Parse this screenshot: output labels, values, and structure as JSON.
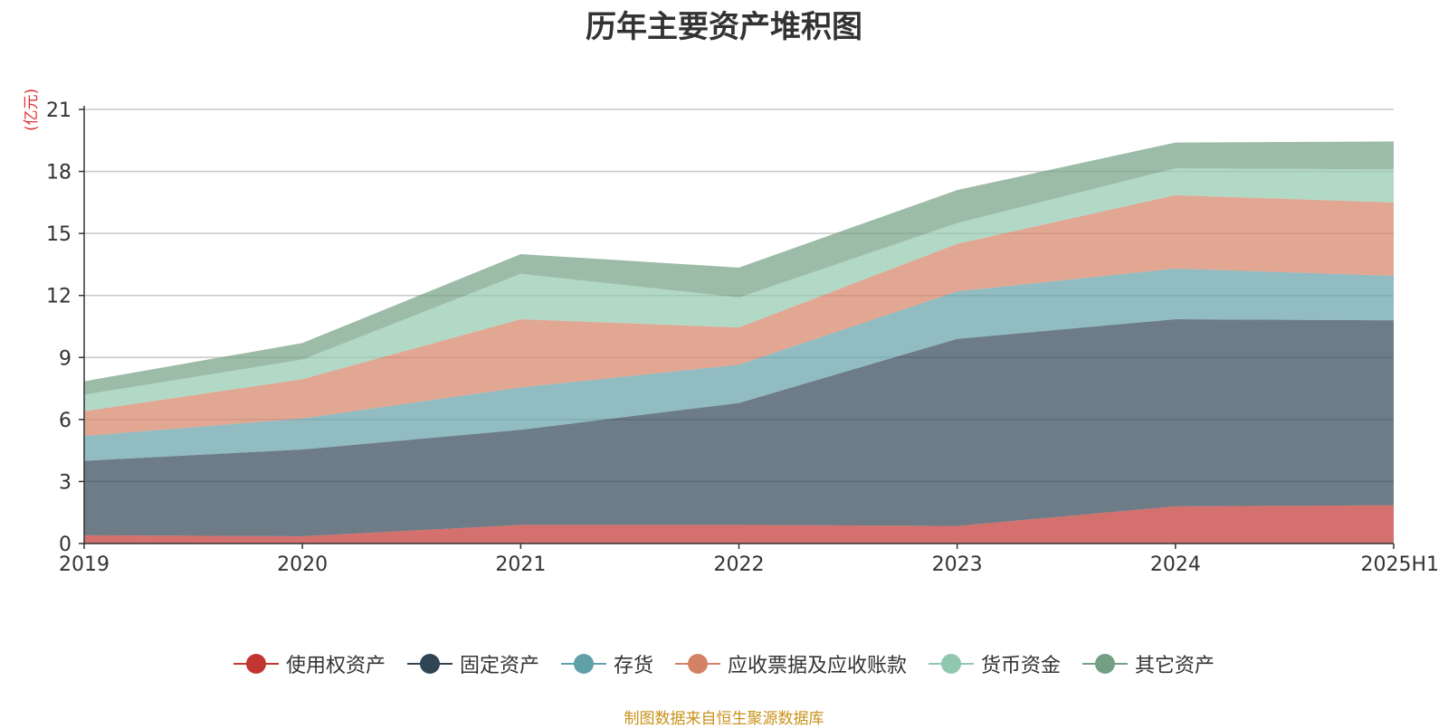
{
  "chart_data": {
    "type": "area",
    "stacked": true,
    "title": "历年主要资产堆积图",
    "unit_label": "(亿元)",
    "x": [
      "2019",
      "2020",
      "2021",
      "2022",
      "2023",
      "2024",
      "2025H1"
    ],
    "ylim": [
      0,
      21
    ],
    "yticks": [
      0,
      3,
      6,
      9,
      12,
      15,
      18,
      21
    ],
    "grid": true,
    "legend_position": "bottom-center",
    "series": [
      {
        "name": "使用权资产",
        "color": "#c23531",
        "values": [
          0.4,
          0.35,
          0.9,
          0.9,
          0.85,
          1.8,
          1.85
        ]
      },
      {
        "name": "固定资产",
        "color": "#2f4554",
        "values": [
          3.6,
          4.2,
          4.6,
          5.9,
          9.05,
          9.05,
          8.95
        ]
      },
      {
        "name": "存货",
        "color": "#61a0a8",
        "values": [
          1.2,
          1.5,
          2.05,
          1.85,
          2.3,
          2.45,
          2.15
        ]
      },
      {
        "name": "应收票据及应收账款",
        "color": "#d48265",
        "values": [
          1.2,
          1.9,
          3.3,
          1.8,
          2.3,
          3.55,
          3.55
        ]
      },
      {
        "name": "货币资金",
        "color": "#91c7ae",
        "values": [
          0.8,
          0.95,
          2.2,
          1.45,
          1.0,
          1.3,
          1.6
        ]
      },
      {
        "name": "其它资产",
        "color": "#749f83",
        "values": [
          0.65,
          0.8,
          0.95,
          1.45,
          1.6,
          1.25,
          1.35
        ]
      }
    ]
  },
  "source_note": "制图数据来自恒生聚源数据库"
}
